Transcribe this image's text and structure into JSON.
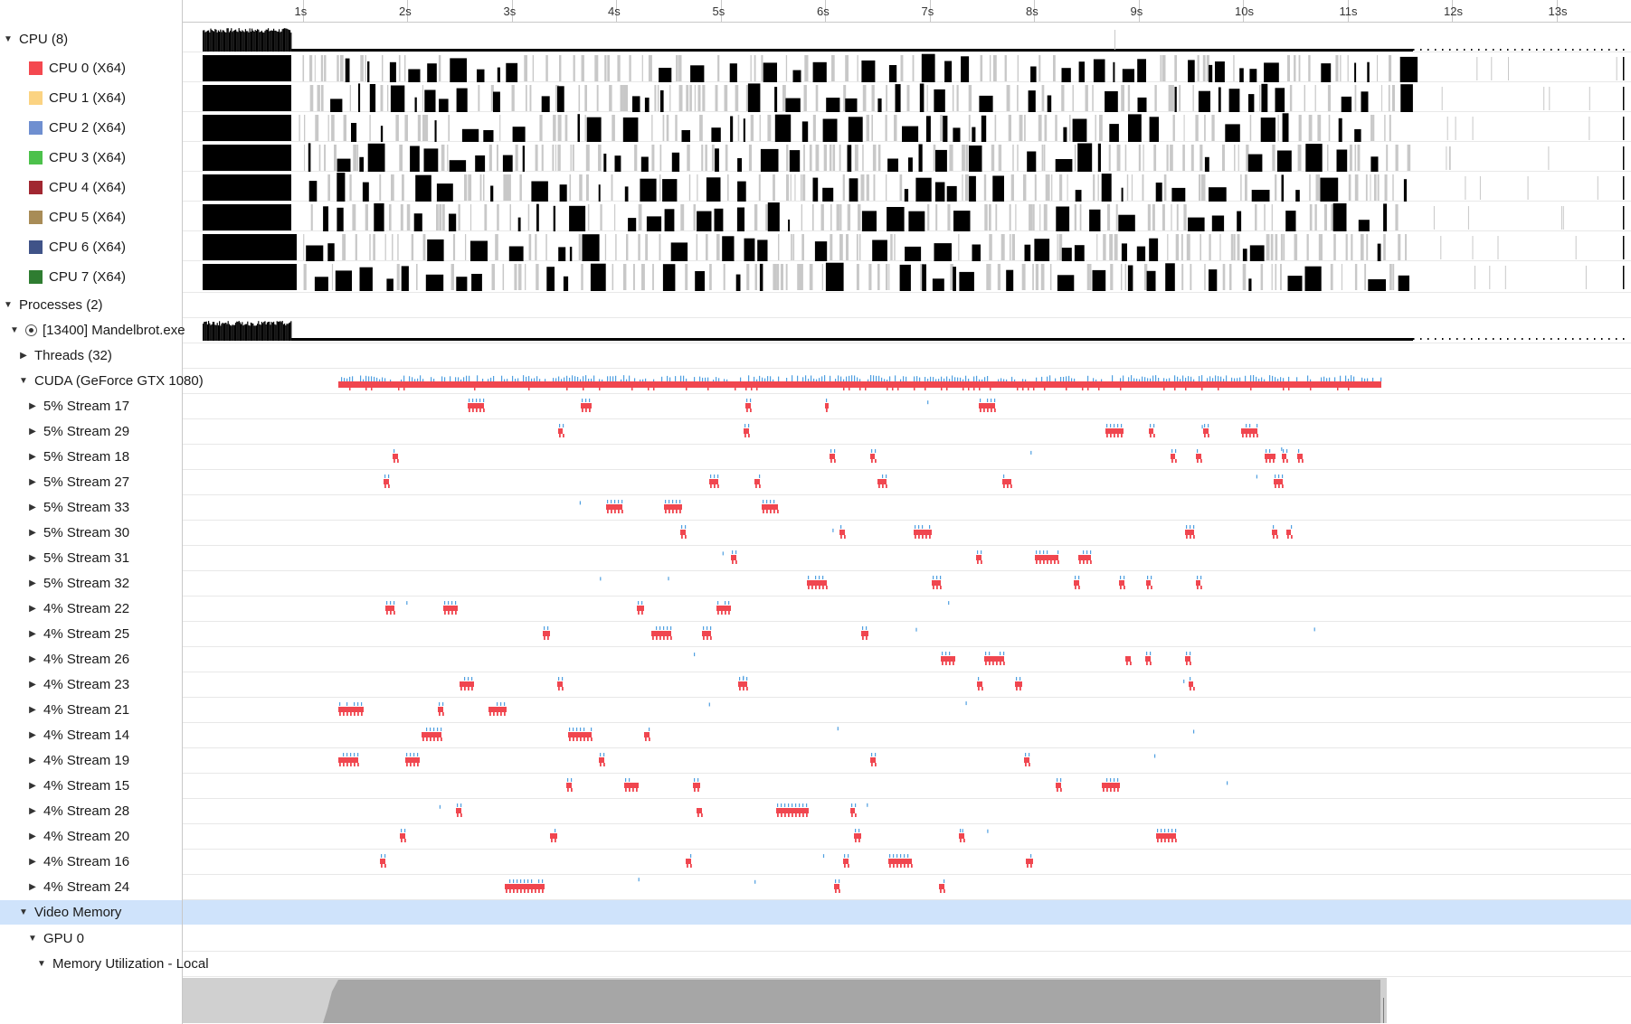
{
  "ruler": {
    "ticks": [
      "1s",
      "2s",
      "3s",
      "4s",
      "5s",
      "6s",
      "7s",
      "8s",
      "9s",
      "10s",
      "11s",
      "12s",
      "13s"
    ]
  },
  "tree": {
    "cpu_group": {
      "label": "CPU (8)"
    },
    "cpus": [
      {
        "label": "CPU 0 (X64)",
        "color": "#f4484f"
      },
      {
        "label": "CPU 1 (X64)",
        "color": "#fbd382"
      },
      {
        "label": "CPU 2 (X64)",
        "color": "#6f8fd0"
      },
      {
        "label": "CPU 3 (X64)",
        "color": "#4cc14b"
      },
      {
        "label": "CPU 4 (X64)",
        "color": "#a12731"
      },
      {
        "label": "CPU 5 (X64)",
        "color": "#a88c57"
      },
      {
        "label": "CPU 6 (X64)",
        "color": "#405388"
      },
      {
        "label": "CPU 7 (X64)",
        "color": "#2f7d31"
      }
    ],
    "processes_group": {
      "label": "Processes (2)"
    },
    "process": {
      "label": "[13400] Mandelbrot.exe"
    },
    "threads": {
      "label": "Threads (32)"
    },
    "cuda": {
      "label": "CUDA (GeForce GTX 1080)"
    },
    "streams": [
      "5% Stream 17",
      "5% Stream 29",
      "5% Stream 18",
      "5% Stream 27",
      "5% Stream 33",
      "5% Stream 30",
      "5% Stream 31",
      "5% Stream 32",
      "4% Stream 22",
      "4% Stream 25",
      "4% Stream 26",
      "4% Stream 23",
      "4% Stream 21",
      "4% Stream 14",
      "4% Stream 19",
      "4% Stream 15",
      "4% Stream 28",
      "4% Stream 20",
      "4% Stream 16",
      "4% Stream 24"
    ],
    "video_memory": {
      "label": "Video Memory"
    },
    "gpu0": {
      "label": "GPU 0"
    },
    "mem_util": {
      "label": "Memory Utilization - Local"
    }
  },
  "colors": {
    "kernel": "#f0464f",
    "api": "#4f9fe0",
    "busy": "#000000",
    "idle_tick": "#c8c8c8",
    "selection": "#cfe3fb",
    "memory": "#a6a6a6",
    "memory_light": "#d0d0d0"
  }
}
